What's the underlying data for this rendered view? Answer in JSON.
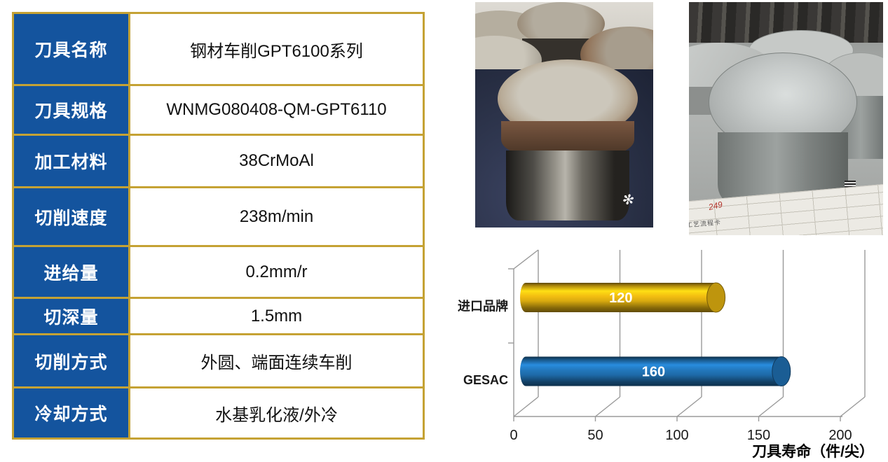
{
  "page": {
    "background": "#FFFFFF"
  },
  "spec_table": {
    "header_bg": "#14549E",
    "border_color": "#C5A234",
    "rows": [
      {
        "label": "刀具名称",
        "value": "钢材车削GPT6100系列"
      },
      {
        "label": "刀具规格",
        "value": "WNMG080408-QM-GPT6110"
      },
      {
        "label": "加工材料",
        "value": "38CrMoAl"
      },
      {
        "label": "切削速度",
        "value": "238m/min"
      },
      {
        "label": "进给量",
        "value": "0.2mm/r"
      },
      {
        "label": "切深量",
        "value": "1.5mm"
      },
      {
        "label": "切削方式",
        "value": "外圆、端面连续车削"
      },
      {
        "label": "冷却方式",
        "value": "水基乳化液/外冷"
      }
    ]
  },
  "photos": {
    "raw_photo_alt": "rusty-steel-workpieces-on-navy-cloth",
    "machined_photo_alt": "machined-steel-workpiece-on-process-card",
    "process_card_text": "工艺流程卡",
    "handwritten_mark": "249"
  },
  "chart_data": {
    "type": "bar",
    "orientation": "horizontal",
    "style": "3d-cylinder",
    "categories": [
      "进口品牌",
      "GESAC"
    ],
    "values": [
      120,
      160
    ],
    "value_labels": [
      "120",
      "160"
    ],
    "bar_colors": [
      "#D8A90F",
      "#1E6AA8"
    ],
    "xlabel": "刀具寿命（件/尖）",
    "xlim": [
      0,
      200
    ],
    "xticks": [
      0,
      50,
      100,
      150,
      200
    ],
    "grid": true,
    "legend": false,
    "grid_color": "#9A9A9A",
    "tick_text_color": "#1A1A1A"
  }
}
